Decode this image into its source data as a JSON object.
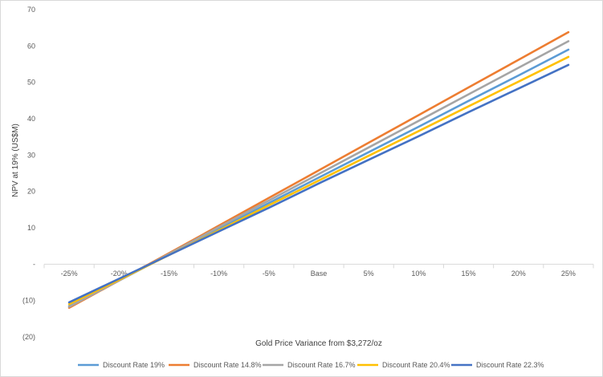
{
  "chart_data": {
    "type": "line",
    "title": "",
    "xlabel": "Gold Price Variance from $3,272/oz",
    "ylabel": "NPV at 19% (US$M)",
    "categories": [
      "-25%",
      "-20%",
      "-15%",
      "-10%",
      "-5%",
      "Base",
      "5%",
      "10%",
      "15%",
      "20%",
      "25%"
    ],
    "y_ticks": [
      {
        "value": 70,
        "label": "70"
      },
      {
        "value": 60,
        "label": "60"
      },
      {
        "value": 50,
        "label": "50"
      },
      {
        "value": 40,
        "label": "40"
      },
      {
        "value": 30,
        "label": "30"
      },
      {
        "value": 20,
        "label": "20"
      },
      {
        "value": 10,
        "label": "10"
      },
      {
        "value": 0,
        "label": "-"
      },
      {
        "value": -10,
        "label": "(10)"
      },
      {
        "value": -20,
        "label": "(20)"
      }
    ],
    "ylim": [
      -20,
      70
    ],
    "grid": false,
    "legend_position": "bottom",
    "series": [
      {
        "name": "Discount Rate 19%",
        "color": "#5B9BD5",
        "values": [
          -11.5,
          -4.5,
          2.6,
          9.7,
          16.8,
          23.8,
          30.8,
          37.8,
          44.9,
          51.9,
          59.0
        ]
      },
      {
        "name": "Discount Rate 14.8%",
        "color": "#ED7D31",
        "values": [
          -12.0,
          -4.5,
          3.0,
          10.6,
          18.2,
          25.8,
          33.4,
          41.0,
          48.6,
          56.2,
          63.8
        ]
      },
      {
        "name": "Discount Rate 16.7%",
        "color": "#A5A5A5",
        "values": [
          -11.7,
          -4.5,
          2.8,
          10.2,
          17.5,
          24.8,
          32.1,
          39.4,
          46.7,
          54.0,
          61.3
        ]
      },
      {
        "name": "Discount Rate 20.4%",
        "color": "#FFC000",
        "values": [
          -11.0,
          -4.3,
          2.5,
          9.3,
          16.2,
          23.0,
          29.8,
          36.6,
          43.4,
          50.2,
          57.0
        ]
      },
      {
        "name": "Discount Rate 22.3%",
        "color": "#4472C4",
        "values": [
          -10.5,
          -4.0,
          2.5,
          9.0,
          15.5,
          22.2,
          28.7,
          35.2,
          41.8,
          48.3,
          54.8
        ]
      }
    ]
  }
}
